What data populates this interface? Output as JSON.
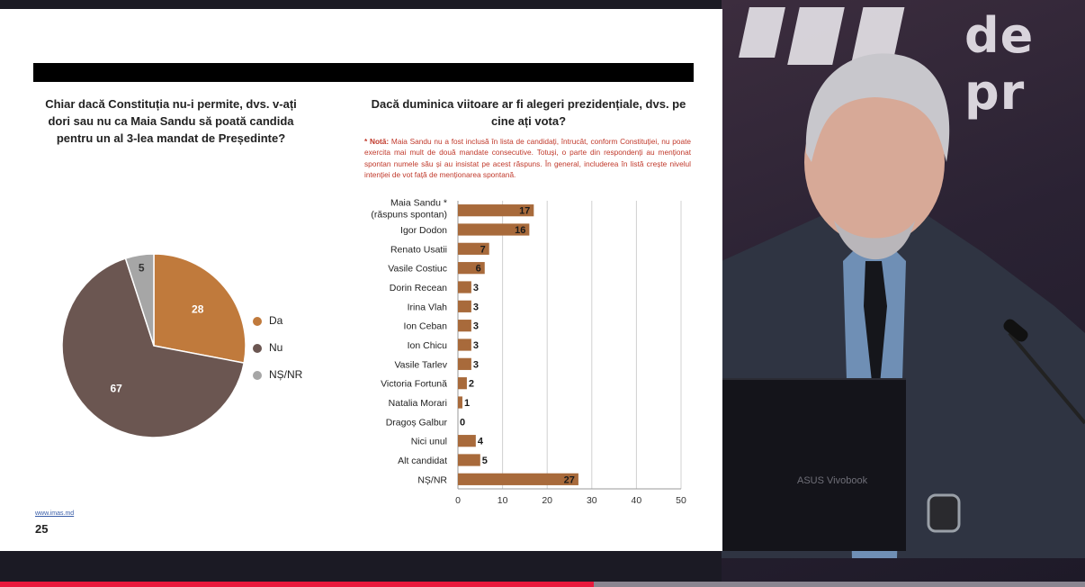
{
  "studio": {
    "logo_text": "de pr",
    "laptop_brand": "ASUS Vivobook"
  },
  "slide": {
    "left_question": "Chiar dacă Constituția nu-i permite, dvs. v-ați dori sau nu ca Maia Sandu să poată candida pentru un al 3-lea mandat de Președinte?",
    "right_question": "Dacă duminica viitoare ar fi alegeri prezidențiale, dvs. pe cine ați vota?",
    "note_label": "* Notă:",
    "note_text": "Maia Sandu nu a fost inclusă în lista de candidați, întrucât, conform Constituției, nu poate exercita mai mult de două mandate consecutive. Totuși, o parte din respondenți au menționat spontan numele său și au insistat pe acest răspuns. În general, includerea în listă crește nivelul intenției de vot față de menționarea spontană.",
    "source_link": "www.imas.md",
    "page_number": "25"
  },
  "colors": {
    "da": "#c07a3c",
    "nu": "#6b5651",
    "nsnr": "#a6a6a6",
    "bar": "#a86a3b",
    "ticker_red": "#e8193c"
  },
  "chart_data": [
    {
      "type": "pie",
      "categories": [
        "Da",
        "Nu",
        "NȘ/NR"
      ],
      "values": [
        28,
        67,
        5
      ],
      "legend_placement": "right"
    },
    {
      "type": "bar",
      "orientation": "horizontal",
      "categories": [
        "Maia Sandu * (răspuns spontan)",
        "Igor Dodon",
        "Renato Usatii",
        "Vasile Costiuc",
        "Dorin Recean",
        "Irina Vlah",
        "Ion Ceban",
        "Ion Chicu",
        "Vasile Tarlev",
        "Victoria Fortună",
        "Natalia Morari",
        "Dragoș Galbur",
        "Nici unul",
        "Alt candidat",
        "NȘ/NR"
      ],
      "values": [
        17,
        16,
        7,
        6,
        3,
        3,
        3,
        3,
        3,
        2,
        1,
        0,
        4,
        5,
        27
      ],
      "xlim": [
        0,
        50
      ],
      "xticks": [
        0,
        10,
        20,
        30,
        40,
        50
      ],
      "grid": true
    }
  ]
}
